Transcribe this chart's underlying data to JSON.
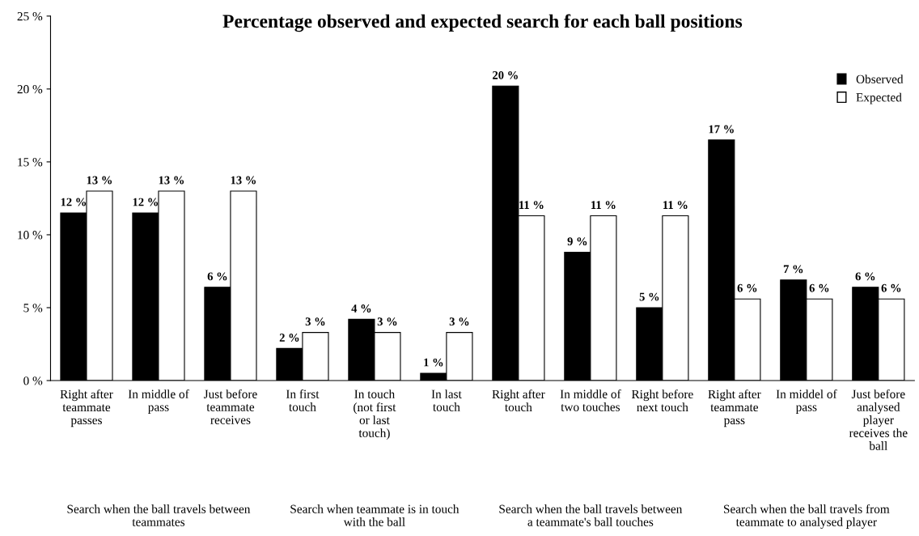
{
  "chart_data": {
    "type": "bar",
    "title": "Percentage observed and expected search for each ball positions",
    "categories": [
      "Right after teammate passes",
      "In middle of pass",
      "Just before teammate receives",
      "In first touch",
      "In touch (not first or last touch)",
      "In last touch",
      "Right after touch",
      "In middle of two touches",
      "Right before next touch",
      "Right after teammate pass",
      "In middel of pass",
      "Just before analysed player receives the ball"
    ],
    "series": [
      {
        "name": "Observed",
        "color": "#000000",
        "values": [
          11.5,
          11.5,
          6.4,
          2.2,
          4.2,
          0.5,
          20.2,
          8.8,
          5.0,
          16.5,
          6.9,
          6.4
        ],
        "value_labels": [
          "12 %",
          "12 %",
          "6 %",
          "2 %",
          "4 %",
          "1 %",
          "20 %",
          "9 %",
          "5 %",
          "17 %",
          "7 %",
          "6 %"
        ]
      },
      {
        "name": "Expected",
        "color": "#ffffff",
        "values": [
          13,
          13,
          13,
          3.3,
          3.3,
          3.3,
          11.3,
          11.3,
          11.3,
          5.6,
          5.6,
          5.6
        ],
        "value_labels": [
          "13 %",
          "13 %",
          "13 %",
          "3 %",
          "3 %",
          "3 %",
          "11 %",
          "11 %",
          "11 %",
          "6 %",
          "6 %",
          "6 %"
        ]
      }
    ],
    "annotations": [
      "Search when the ball travels between teammates",
      "Search when teammate is in touch with the ball",
      "Search when the ball travels between a teammate's ball touches",
      "Search when the ball travels from teammate to analysed player"
    ],
    "ylim": [
      0,
      25
    ],
    "yticks": [
      {
        "value": 0,
        "label": "0 %"
      },
      {
        "value": 5,
        "label": "5 %"
      },
      {
        "value": 10,
        "label": "10 %"
      },
      {
        "value": 15,
        "label": "15 %"
      },
      {
        "value": 20,
        "label": "20 %"
      },
      {
        "value": 25,
        "label": "25 %"
      }
    ],
    "legend": "right",
    "grid": false
  }
}
